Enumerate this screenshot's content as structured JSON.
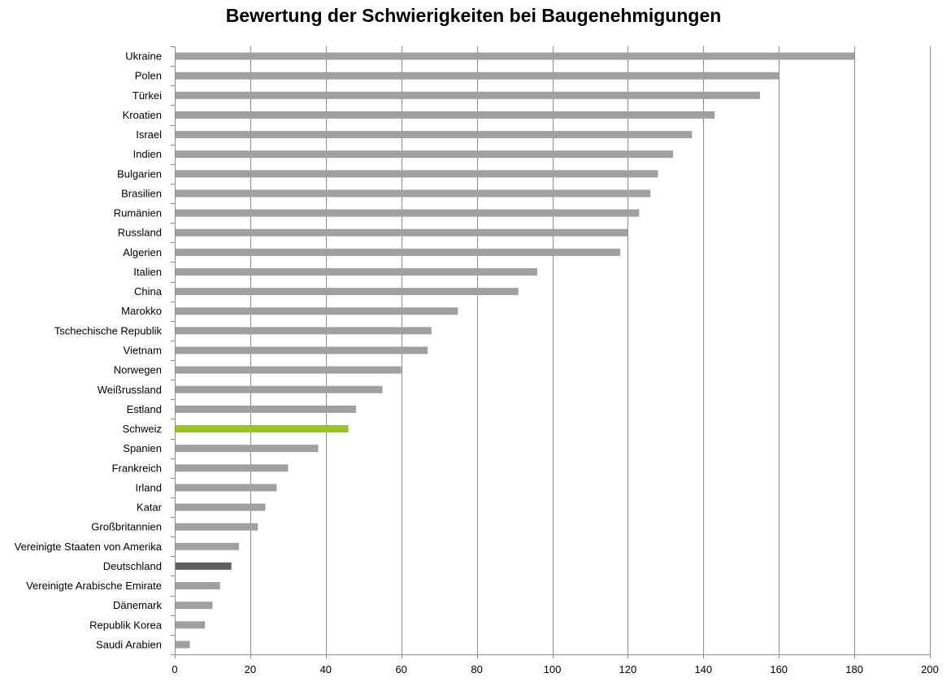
{
  "chart_data": {
    "type": "bar",
    "orientation": "horizontal",
    "title": "Bewertung der Schwierigkeiten bei Baugenehmigungen",
    "xlabel": "",
    "ylabel": "",
    "xlim": [
      0,
      200
    ],
    "x_ticks": [
      "0",
      "20",
      "40",
      "60",
      "80",
      "100",
      "120",
      "140",
      "160",
      "180",
      "200"
    ],
    "grid": "vertical",
    "legend": "none",
    "categories": [
      "Ukraine",
      "Polen",
      "Türkei",
      "Kroatien",
      "Israel",
      "Indien",
      "Bulgarien",
      "Brasilien",
      "Rumänien",
      "Russland",
      "Algerien",
      "Italien",
      "China",
      "Marokko",
      "Tschechische Republik",
      "Vietnam",
      "Norwegen",
      "Weißrussland",
      "Estland",
      "Schweiz",
      "Spanien",
      "Frankreich",
      "Irland",
      "Katar",
      "Großbritannien",
      "Vereinigte Staaten von Amerika",
      "Deutschland",
      "Vereinigte Arabische Emirate",
      "Dänemark",
      "Republik Korea",
      "Saudi Arabien"
    ],
    "values": [
      180,
      160,
      155,
      143,
      137,
      132,
      128,
      126,
      123,
      120,
      118,
      96,
      91,
      75,
      68,
      67,
      60,
      55,
      48,
      46,
      38,
      30,
      27,
      24,
      22,
      17,
      15,
      12,
      10,
      8,
      4
    ],
    "colors": {
      "default": "#a0a0a0",
      "highlight": {
        "Schweiz": "#9bc321",
        "Deutschland": "#5f5f5f"
      },
      "grid": "#8c8c8c",
      "axis": "#8c8c8c"
    }
  }
}
